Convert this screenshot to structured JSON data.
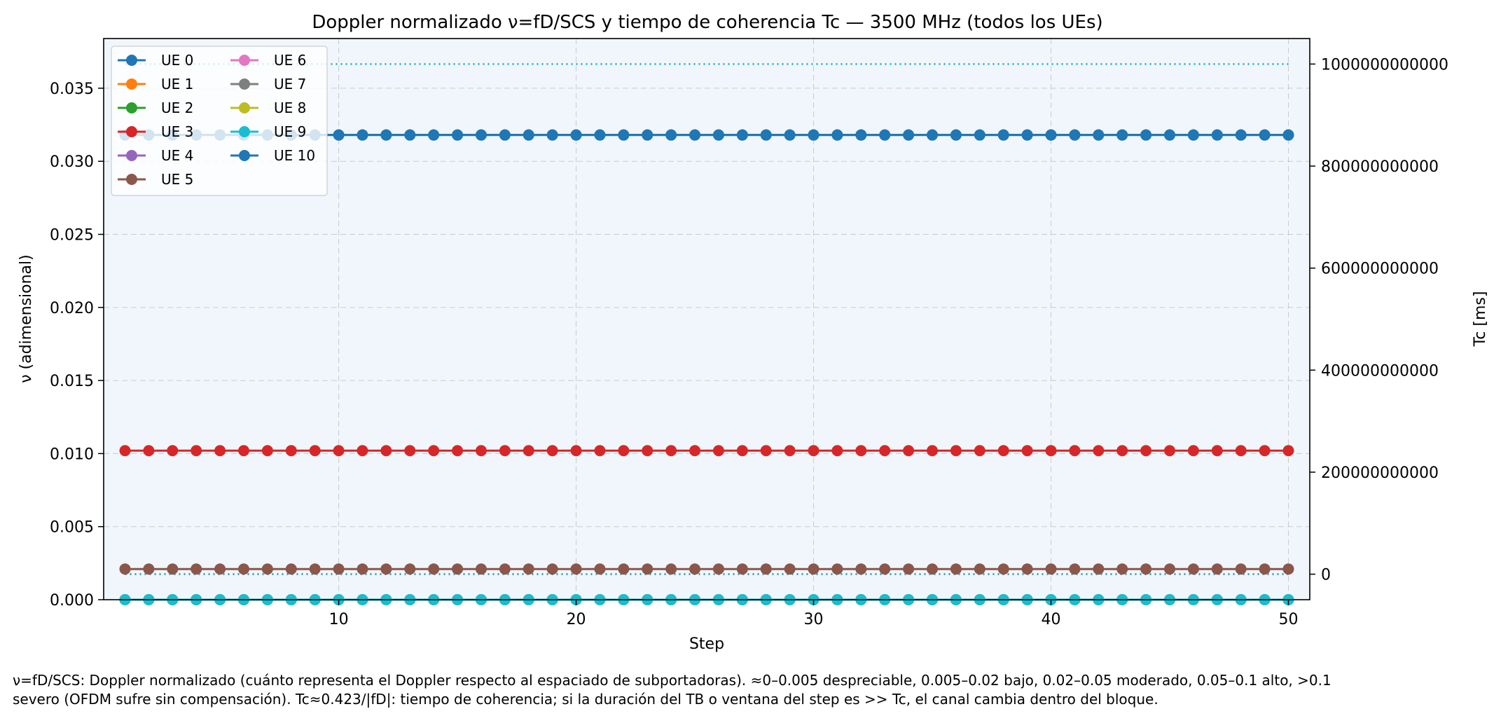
{
  "chart_data": {
    "type": "line",
    "title": "Doppler normalizado ν=fD/SCS y tiempo de coherencia Tc — 3500 MHz (todos los UEs)",
    "xlabel": "Step",
    "ylabel": "ν (adimensional)",
    "ylabel_right": "Tc [ms]",
    "xlim": [
      0.1,
      50.9
    ],
    "ylim": [
      0,
      0.0384
    ],
    "ylim_right": [
      -50000000000,
      1050000000000
    ],
    "x_ticks": [
      10,
      20,
      30,
      40,
      50
    ],
    "x_tick_labels": [
      "10",
      "20",
      "30",
      "40",
      "50"
    ],
    "y_ticks": [
      0,
      0.005,
      0.01,
      0.015,
      0.02,
      0.025,
      0.03,
      0.035
    ],
    "y_tick_labels": [
      "0.000",
      "0.005",
      "0.010",
      "0.015",
      "0.020",
      "0.025",
      "0.030",
      "0.035"
    ],
    "y_right_ticks": [
      0,
      200000000000,
      400000000000,
      600000000000,
      800000000000,
      1000000000000
    ],
    "y_right_tick_labels": [
      "0",
      "200000000000",
      "400000000000",
      "600000000000",
      "800000000000",
      "1000000000000"
    ],
    "grid": true,
    "legend_position": "top-left",
    "legend_columns": 2,
    "plot_background": "#f0f6fb",
    "x_start": 1,
    "x_end": 50,
    "series": [
      {
        "name": "UE 0",
        "color": "#1f77b4",
        "nu": 0.0318
      },
      {
        "name": "UE 1",
        "color": "#ff7f0e",
        "nu": 0.0
      },
      {
        "name": "UE 2",
        "color": "#2ca02c",
        "nu": 0.0
      },
      {
        "name": "UE 3",
        "color": "#d62728",
        "nu": 0.0102
      },
      {
        "name": "UE 4",
        "color": "#9467bd",
        "nu": 0.0
      },
      {
        "name": "UE 5",
        "color": "#8c564b",
        "nu": 0.0021
      },
      {
        "name": "UE 6",
        "color": "#e377c2",
        "nu": 0.0
      },
      {
        "name": "UE 7",
        "color": "#7f7f7f",
        "nu": 0.0
      },
      {
        "name": "UE 8",
        "color": "#bcbd22",
        "nu": 0.0
      },
      {
        "name": "UE 9",
        "color": "#17becf",
        "nu": 0.0
      },
      {
        "name": "UE 10",
        "color": "#1f77b4",
        "nu": 0.0318
      }
    ],
    "draw_order": [
      0,
      1,
      2,
      3,
      4,
      6,
      7,
      8,
      9,
      10,
      5
    ],
    "tc_series": [
      {
        "color": "#1f77b4",
        "tc": 1000000000000
      },
      {
        "color": "#17becf",
        "tc": 1000000000000
      },
      {
        "color": "#1f77b4",
        "tc": 13000
      },
      {
        "color": "#d62728",
        "tc": 41000
      },
      {
        "color": "#8c564b",
        "tc": 200000
      },
      {
        "color": "#17becf",
        "tc": 13000
      }
    ]
  },
  "caption": {
    "line1": "ν=fD/SCS: Doppler normalizado (cuánto representa el Doppler respecto al espaciado de subportadoras). ≈0–0.005 despreciable, 0.005–0.02 bajo, 0.02–0.05 moderado, 0.05–0.1 alto, >0.1",
    "line2": "severo (OFDM sufre sin compensación). Tc≈0.423/|fD|: tiempo de coherencia; si la duración del TB o ventana del step es >> Tc, el canal cambia dentro del bloque."
  }
}
